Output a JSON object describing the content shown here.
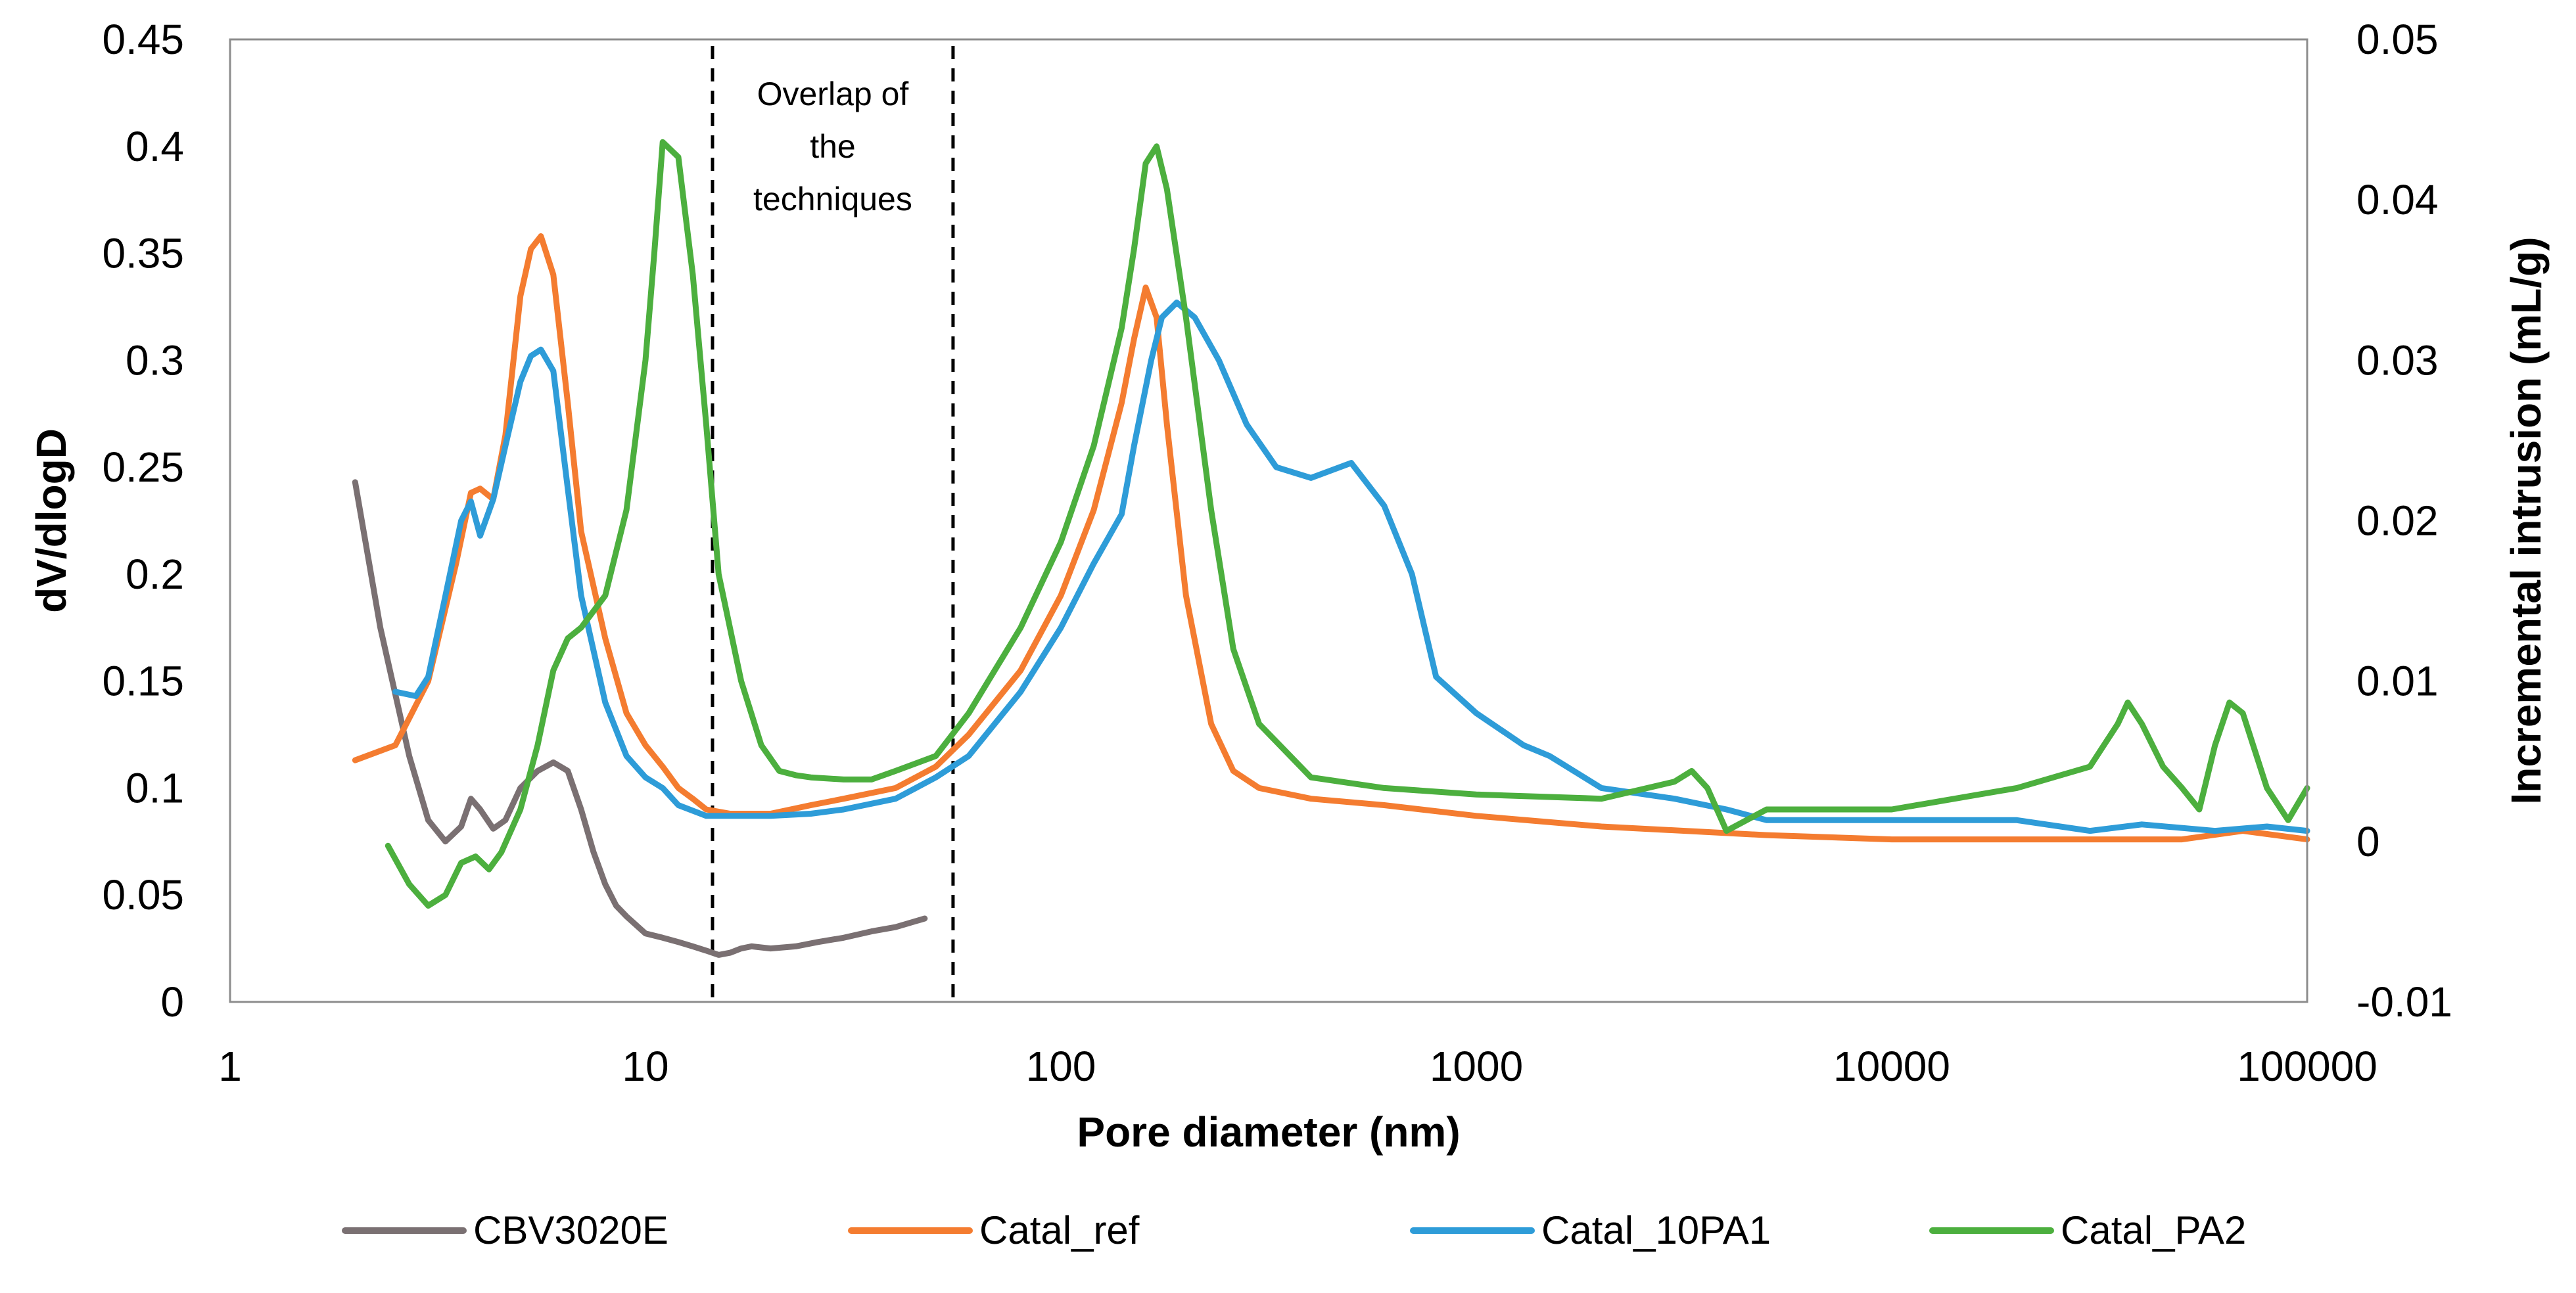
{
  "chart_data": {
    "type": "line",
    "title": "",
    "xlabel": "Pore diameter (nm)",
    "ylabel": "dV/dlogD",
    "y2label": "Incremental intrusion (mL/g)",
    "xscale": "log",
    "xlim": [
      1,
      100000
    ],
    "ylim": [
      0,
      0.45
    ],
    "y2lim": [
      -0.01,
      0.05
    ],
    "grid": false,
    "legend_position": "bottom",
    "x_ticks": [
      "1",
      "10",
      "100",
      "1000",
      "10000",
      "100000"
    ],
    "y_ticks": [
      "0",
      "0.05",
      "0.1",
      "0.15",
      "0.2",
      "0.25",
      "0.3",
      "0.35",
      "0.4",
      "0.45"
    ],
    "y2_ticks": [
      "-0.01",
      "0",
      "0.01",
      "0.02",
      "0.03",
      "0.04",
      "0.05"
    ],
    "annotation": {
      "lines": [
        "Overlap of",
        "the",
        "techniques"
      ],
      "region_x": [
        14.5,
        55
      ]
    },
    "series": [
      {
        "name": "CBV3020E",
        "color": "#7a7072",
        "x": [
          2,
          2.3,
          2.7,
          3.0,
          3.3,
          3.6,
          3.8,
          4.0,
          4.3,
          4.6,
          5.0,
          5.5,
          6.0,
          6.5,
          7.0,
          7.5,
          8.0,
          8.5,
          9.0,
          10,
          11,
          12,
          13,
          14,
          15,
          16,
          17,
          18,
          20,
          23,
          26,
          30,
          35,
          40,
          47
        ],
        "y": [
          0.243,
          0.175,
          0.115,
          0.085,
          0.075,
          0.082,
          0.095,
          0.09,
          0.081,
          0.085,
          0.1,
          0.108,
          0.112,
          0.108,
          0.09,
          0.07,
          0.055,
          0.045,
          0.04,
          0.032,
          0.03,
          0.028,
          0.026,
          0.024,
          0.022,
          0.023,
          0.025,
          0.026,
          0.025,
          0.026,
          0.028,
          0.03,
          0.033,
          0.035,
          0.039
        ]
      },
      {
        "name": "Catal_ref",
        "color": "#f47c30",
        "x": [
          2,
          2.5,
          3,
          3.5,
          3.8,
          4.0,
          4.3,
          4.6,
          5.0,
          5.3,
          5.6,
          6.0,
          6.5,
          7.0,
          8.0,
          9.0,
          10,
          11,
          12,
          13,
          14,
          14,
          16,
          20,
          25,
          30,
          40,
          50,
          60,
          80,
          100,
          120,
          140,
          150,
          160,
          170,
          180,
          200,
          230,
          260,
          300,
          400,
          600,
          1000,
          2000,
          5000,
          10000,
          20000,
          50000,
          70000,
          100000
        ],
        "y": [
          0.113,
          0.12,
          0.15,
          0.205,
          0.238,
          0.24,
          0.235,
          0.265,
          0.33,
          0.352,
          0.358,
          0.34,
          0.28,
          0.22,
          0.17,
          0.135,
          0.12,
          0.11,
          0.1,
          0.095,
          0.09,
          0.09,
          0.088,
          0.088,
          0.092,
          0.095,
          0.1,
          0.11,
          0.125,
          0.155,
          0.19,
          0.23,
          0.28,
          0.31,
          0.334,
          0.32,
          0.27,
          0.19,
          0.13,
          0.108,
          0.1,
          0.095,
          0.092,
          0.087,
          0.082,
          0.078,
          0.076,
          0.076,
          0.076,
          0.08,
          0.076
        ]
      },
      {
        "name": "Catal_10PA1",
        "color": "#2e9cd8",
        "x": [
          2.5,
          2.8,
          3.0,
          3.3,
          3.6,
          3.8,
          4.0,
          4.3,
          4.6,
          5.0,
          5.3,
          5.6,
          6.0,
          6.5,
          7.0,
          8.0,
          9.0,
          10,
          11,
          12,
          14,
          16,
          20,
          25,
          30,
          40,
          50,
          60,
          80,
          100,
          120,
          140,
          150,
          165,
          175,
          190,
          210,
          240,
          280,
          330,
          400,
          500,
          600,
          700,
          800,
          1000,
          1300,
          1500,
          2000,
          3000,
          4000,
          5000,
          10000,
          20000,
          30000,
          40000,
          60000,
          80000,
          100000
        ],
        "y": [
          0.145,
          0.143,
          0.152,
          0.19,
          0.225,
          0.234,
          0.218,
          0.235,
          0.26,
          0.29,
          0.302,
          0.305,
          0.295,
          0.24,
          0.19,
          0.14,
          0.115,
          0.105,
          0.1,
          0.092,
          0.087,
          0.087,
          0.087,
          0.088,
          0.09,
          0.095,
          0.105,
          0.115,
          0.145,
          0.175,
          0.205,
          0.228,
          0.26,
          0.3,
          0.32,
          0.327,
          0.32,
          0.3,
          0.27,
          0.25,
          0.245,
          0.252,
          0.232,
          0.2,
          0.152,
          0.135,
          0.12,
          0.115,
          0.1,
          0.095,
          0.09,
          0.085,
          0.085,
          0.085,
          0.08,
          0.083,
          0.08,
          0.082,
          0.08
        ]
      },
      {
        "name": "Catal_PA2",
        "color": "#4caf3e",
        "x": [
          2.4,
          2.7,
          3.0,
          3.3,
          3.6,
          3.9,
          4.2,
          4.5,
          5.0,
          5.5,
          6.0,
          6.5,
          7.0,
          8.0,
          9.0,
          10,
          10.5,
          11,
          12,
          13,
          14,
          15,
          17,
          19,
          21,
          23,
          25,
          30,
          35,
          40,
          50,
          60,
          80,
          100,
          120,
          140,
          150,
          160,
          170,
          180,
          200,
          230,
          260,
          300,
          400,
          600,
          1000,
          2000,
          3000,
          3300,
          3600,
          4000,
          5000,
          10000,
          20000,
          30000,
          35000,
          37000,
          40000,
          45000,
          50000,
          55000,
          60000,
          65000,
          70000,
          80000,
          90000,
          100000
        ],
        "y": [
          0.073,
          0.055,
          0.045,
          0.05,
          0.065,
          0.068,
          0.062,
          0.07,
          0.09,
          0.12,
          0.155,
          0.17,
          0.175,
          0.19,
          0.23,
          0.3,
          0.35,
          0.402,
          0.395,
          0.34,
          0.27,
          0.2,
          0.15,
          0.12,
          0.108,
          0.106,
          0.105,
          0.104,
          0.104,
          0.108,
          0.115,
          0.135,
          0.175,
          0.215,
          0.26,
          0.315,
          0.352,
          0.392,
          0.4,
          0.38,
          0.32,
          0.23,
          0.165,
          0.13,
          0.105,
          0.1,
          0.097,
          0.095,
          0.103,
          0.108,
          0.1,
          0.08,
          0.09,
          0.09,
          0.1,
          0.11,
          0.13,
          0.14,
          0.13,
          0.11,
          0.1,
          0.09,
          0.12,
          0.14,
          0.135,
          0.1,
          0.085,
          0.1
        ]
      }
    ]
  }
}
